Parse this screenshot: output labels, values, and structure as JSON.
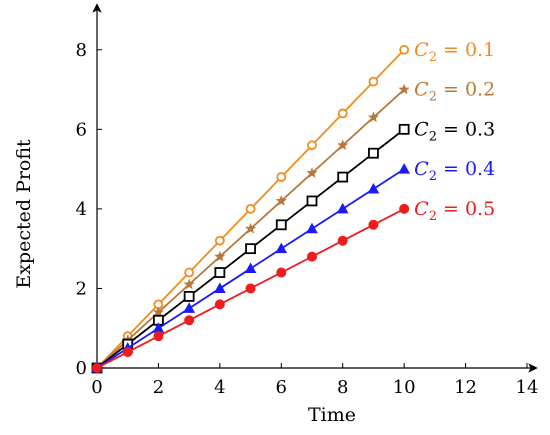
{
  "chart_data": {
    "type": "line",
    "xlabel": "Time",
    "ylabel": "Expected Profit",
    "xlim": [
      0,
      14
    ],
    "ylim": [
      0,
      9
    ],
    "xticks": [
      0,
      2,
      4,
      6,
      8,
      10,
      12,
      14
    ],
    "yticks": [
      0,
      2,
      4,
      6,
      8
    ],
    "grid": false,
    "legend": "end-of-line labels",
    "x": [
      0,
      1,
      2,
      3,
      4,
      5,
      6,
      7,
      8,
      9,
      10
    ],
    "series": [
      {
        "name": "C₂ = 0.1",
        "label_main": "C",
        "label_sub": "2",
        "label_rest": " = 0.1",
        "color": "#f28c1c",
        "marker": "circle-open",
        "values": [
          0,
          0.8,
          1.6,
          2.4,
          3.2,
          4.0,
          4.8,
          5.6,
          6.4,
          7.2,
          8.0
        ]
      },
      {
        "name": "C₂ = 0.2",
        "label_main": "C",
        "label_sub": "2",
        "label_rest": " = 0.2",
        "color": "#b8783c",
        "marker": "star",
        "values": [
          0,
          0.7,
          1.4,
          2.1,
          2.8,
          3.5,
          4.2,
          4.9,
          5.6,
          6.3,
          7.0
        ]
      },
      {
        "name": "C₂ = 0.3",
        "label_main": "C",
        "label_sub": "2",
        "label_rest": " = 0.3",
        "color": "#000000",
        "marker": "square-open",
        "values": [
          0,
          0.6,
          1.2,
          1.8,
          2.4,
          3.0,
          3.6,
          4.2,
          4.8,
          5.4,
          6.0
        ]
      },
      {
        "name": "C₂ = 0.4",
        "label_main": "C",
        "label_sub": "2",
        "label_rest": " = 0.4",
        "color": "#1a1aff",
        "marker": "triangle",
        "values": [
          0,
          0.5,
          1.0,
          1.5,
          2.0,
          2.5,
          3.0,
          3.5,
          4.0,
          4.5,
          5.0
        ]
      },
      {
        "name": "C₂ = 0.5",
        "label_main": "C",
        "label_sub": "2",
        "label_rest": " = 0.5",
        "color": "#ee1c1c",
        "marker": "circle-filled",
        "values": [
          0,
          0.4,
          0.8,
          1.2,
          1.6,
          2.0,
          2.4,
          2.8,
          3.2,
          3.6,
          4.0
        ]
      }
    ]
  }
}
